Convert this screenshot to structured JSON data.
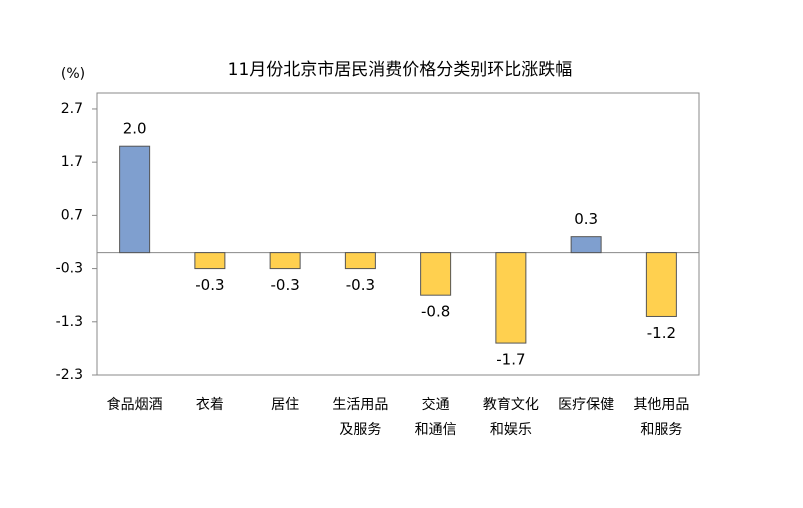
{
  "chart_data": {
    "type": "bar",
    "title": "11月份北京市居民消费价格分类别环比涨跌幅",
    "y_label": "(%)",
    "categories": [
      [
        "食品烟酒"
      ],
      [
        "衣着"
      ],
      [
        "居住"
      ],
      [
        "生活用品",
        "及服务"
      ],
      [
        "交通",
        "和通信"
      ],
      [
        "教育文化",
        "和娱乐"
      ],
      [
        "医疗保健"
      ],
      [
        "其他用品",
        "和服务"
      ]
    ],
    "values": [
      2.0,
      -0.3,
      -0.3,
      -0.3,
      -0.8,
      -1.7,
      0.3,
      -1.2
    ],
    "value_labels": [
      "2.0",
      "-0.3",
      "-0.3",
      "-0.3",
      "-0.8",
      "-1.7",
      "0.3",
      "-1.2"
    ],
    "positive_color": "#7f9fcf",
    "negative_color": "#ffd04f",
    "ylim": [
      -2.3,
      3.0
    ],
    "yticks": [
      2.7,
      1.7,
      0.7,
      -0.3,
      -1.3,
      -2.3
    ],
    "grid": false
  }
}
